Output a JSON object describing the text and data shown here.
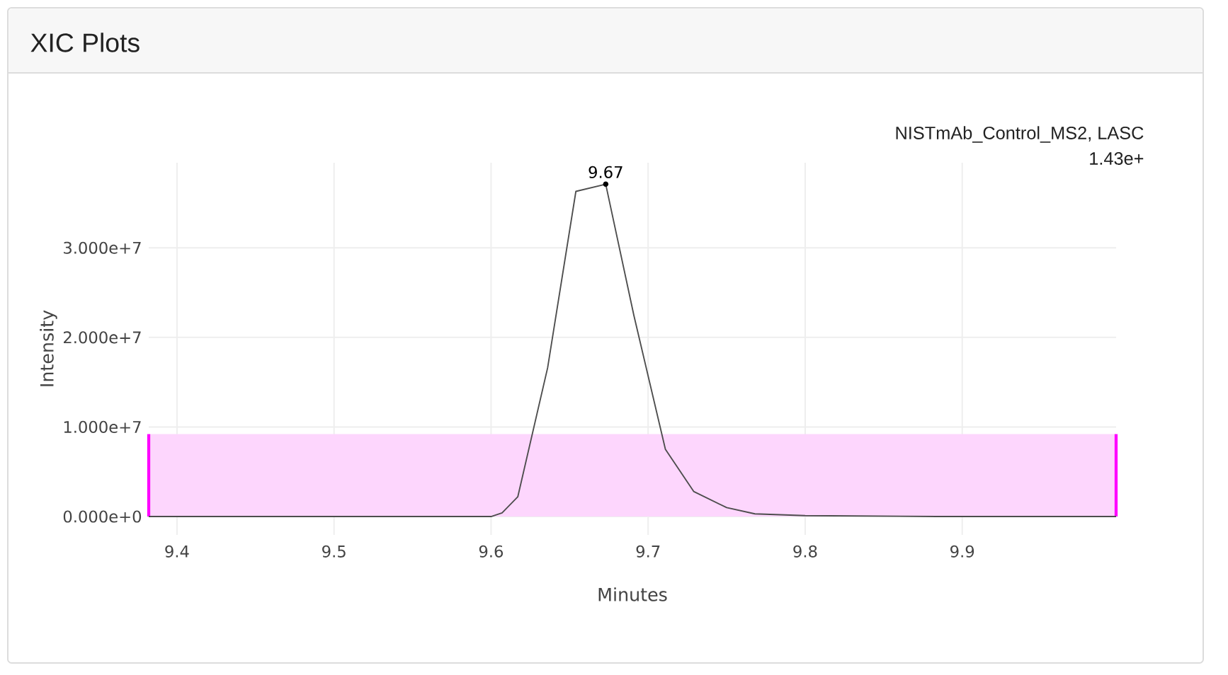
{
  "chart_data": {
    "type": "line",
    "title": "XIC Plots",
    "xlabel": "Minutes",
    "ylabel": "Intensity",
    "xlim": [
      9.382,
      9.998
    ],
    "ylim": [
      -2050000,
      39500000
    ],
    "xticks": [
      9.4,
      9.5,
      9.6,
      9.7,
      9.8,
      9.9
    ],
    "yticks": [
      {
        "value": 0,
        "label": "0.000e+0"
      },
      {
        "value": 10000000,
        "label": "1.000e+7"
      },
      {
        "value": 20000000,
        "label": "2.000e+7"
      },
      {
        "value": 30000000,
        "label": "3.000e+7"
      }
    ],
    "grid": true,
    "series": [
      {
        "type": "area",
        "color": "#fdd6fd",
        "x": [
          9.382,
          9.998
        ],
        "values": [
          9200000,
          9200000
        ]
      },
      {
        "color": "#4d4d4d",
        "x": [
          9.382,
          9.6,
          9.607,
          9.617,
          9.636,
          9.654,
          9.673,
          9.691,
          9.711,
          9.729,
          9.75,
          9.768,
          9.8,
          9.884,
          9.998
        ],
        "values": [
          0,
          0,
          400000,
          2200000,
          16600000,
          36300000,
          37100000,
          22400000,
          7500000,
          2800000,
          1000000,
          300000,
          100000,
          0,
          0
        ]
      }
    ],
    "annotations": [
      {
        "text": "9.67",
        "x": 9.673,
        "y": 37100000
      },
      "NISTmAb_Control_MS2, LASC",
      "1.43e+"
    ]
  }
}
